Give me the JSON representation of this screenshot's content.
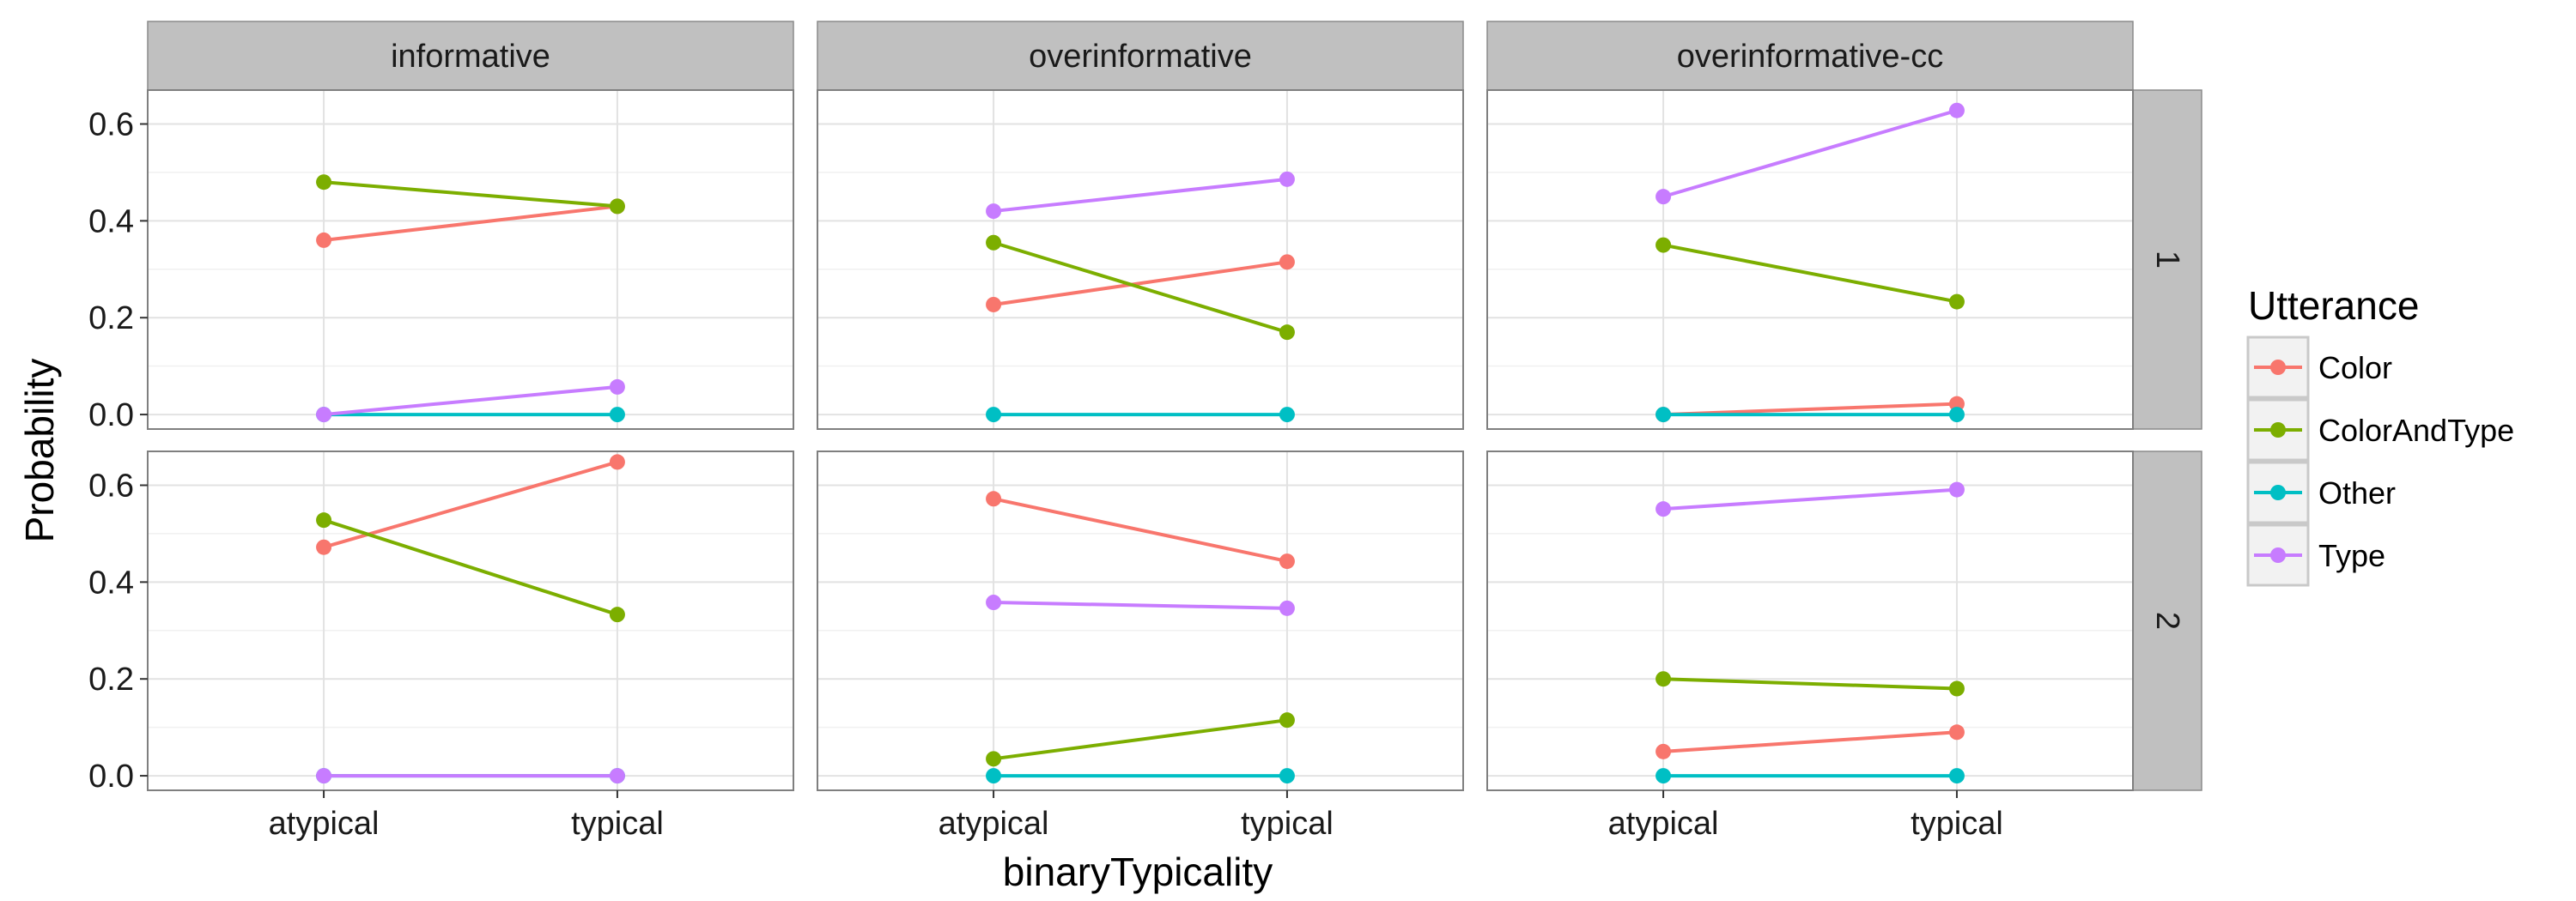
{
  "chart_data": {
    "type": "line",
    "xlabel": "binaryTypicality",
    "ylabel": "Probability",
    "x_categories": [
      "atypical",
      "typical"
    ],
    "y_ticks": [
      "0.0",
      "0.2",
      "0.4",
      "0.6"
    ],
    "ylim": [
      -0.03,
      0.67
    ],
    "facet_columns": [
      "informative",
      "overinformative",
      "overinformative-cc"
    ],
    "facet_rows": [
      "1",
      "2"
    ],
    "legend": {
      "title": "Utterance",
      "position": "right",
      "entries": [
        "Color",
        "ColorAndType",
        "Other",
        "Type"
      ]
    },
    "colors": {
      "Color": "#F8766D",
      "ColorAndType": "#7CAE00",
      "Other": "#00BFC4",
      "Type": "#C77CFF"
    },
    "grid": true,
    "panels": [
      {
        "col": "informative",
        "row": "1",
        "series": [
          {
            "name": "Color",
            "values": [
              0.36,
              0.43
            ]
          },
          {
            "name": "ColorAndType",
            "values": [
              0.48,
              0.43
            ]
          },
          {
            "name": "Other",
            "values": [
              0.0,
              0.0
            ]
          },
          {
            "name": "Type",
            "values": [
              0.0,
              0.057
            ]
          }
        ]
      },
      {
        "col": "overinformative",
        "row": "1",
        "series": [
          {
            "name": "Color",
            "values": [
              0.227,
              0.315
            ]
          },
          {
            "name": "ColorAndType",
            "values": [
              0.355,
              0.17
            ]
          },
          {
            "name": "Other",
            "values": [
              0.0,
              0.0
            ]
          },
          {
            "name": "Type",
            "values": [
              0.42,
              0.486
            ]
          }
        ]
      },
      {
        "col": "overinformative-cc",
        "row": "1",
        "series": [
          {
            "name": "Color",
            "values": [
              0.0,
              0.022
            ]
          },
          {
            "name": "ColorAndType",
            "values": [
              0.35,
              0.233
            ]
          },
          {
            "name": "Other",
            "values": [
              0.0,
              0.0
            ]
          },
          {
            "name": "Type",
            "values": [
              0.45,
              0.628
            ]
          }
        ]
      },
      {
        "col": "informative",
        "row": "2",
        "series": [
          {
            "name": "Color",
            "values": [
              0.472,
              0.648
            ]
          },
          {
            "name": "ColorAndType",
            "values": [
              0.528,
              0.333
            ]
          },
          {
            "name": "Other",
            "values": [
              0.0,
              0.0
            ]
          },
          {
            "name": "Type",
            "values": [
              0.0,
              0.0
            ]
          }
        ]
      },
      {
        "col": "overinformative",
        "row": "2",
        "series": [
          {
            "name": "Color",
            "values": [
              0.572,
              0.443
            ]
          },
          {
            "name": "ColorAndType",
            "values": [
              0.035,
              0.115
            ]
          },
          {
            "name": "Other",
            "values": [
              0.0,
              0.0
            ]
          },
          {
            "name": "Type",
            "values": [
              0.358,
              0.346
            ]
          }
        ]
      },
      {
        "col": "overinformative-cc",
        "row": "2",
        "series": [
          {
            "name": "Color",
            "values": [
              0.05,
              0.09
            ]
          },
          {
            "name": "ColorAndType",
            "values": [
              0.2,
              0.18
            ]
          },
          {
            "name": "Other",
            "values": [
              0.0,
              0.0
            ]
          },
          {
            "name": "Type",
            "values": [
              0.551,
              0.591
            ]
          }
        ]
      }
    ]
  }
}
